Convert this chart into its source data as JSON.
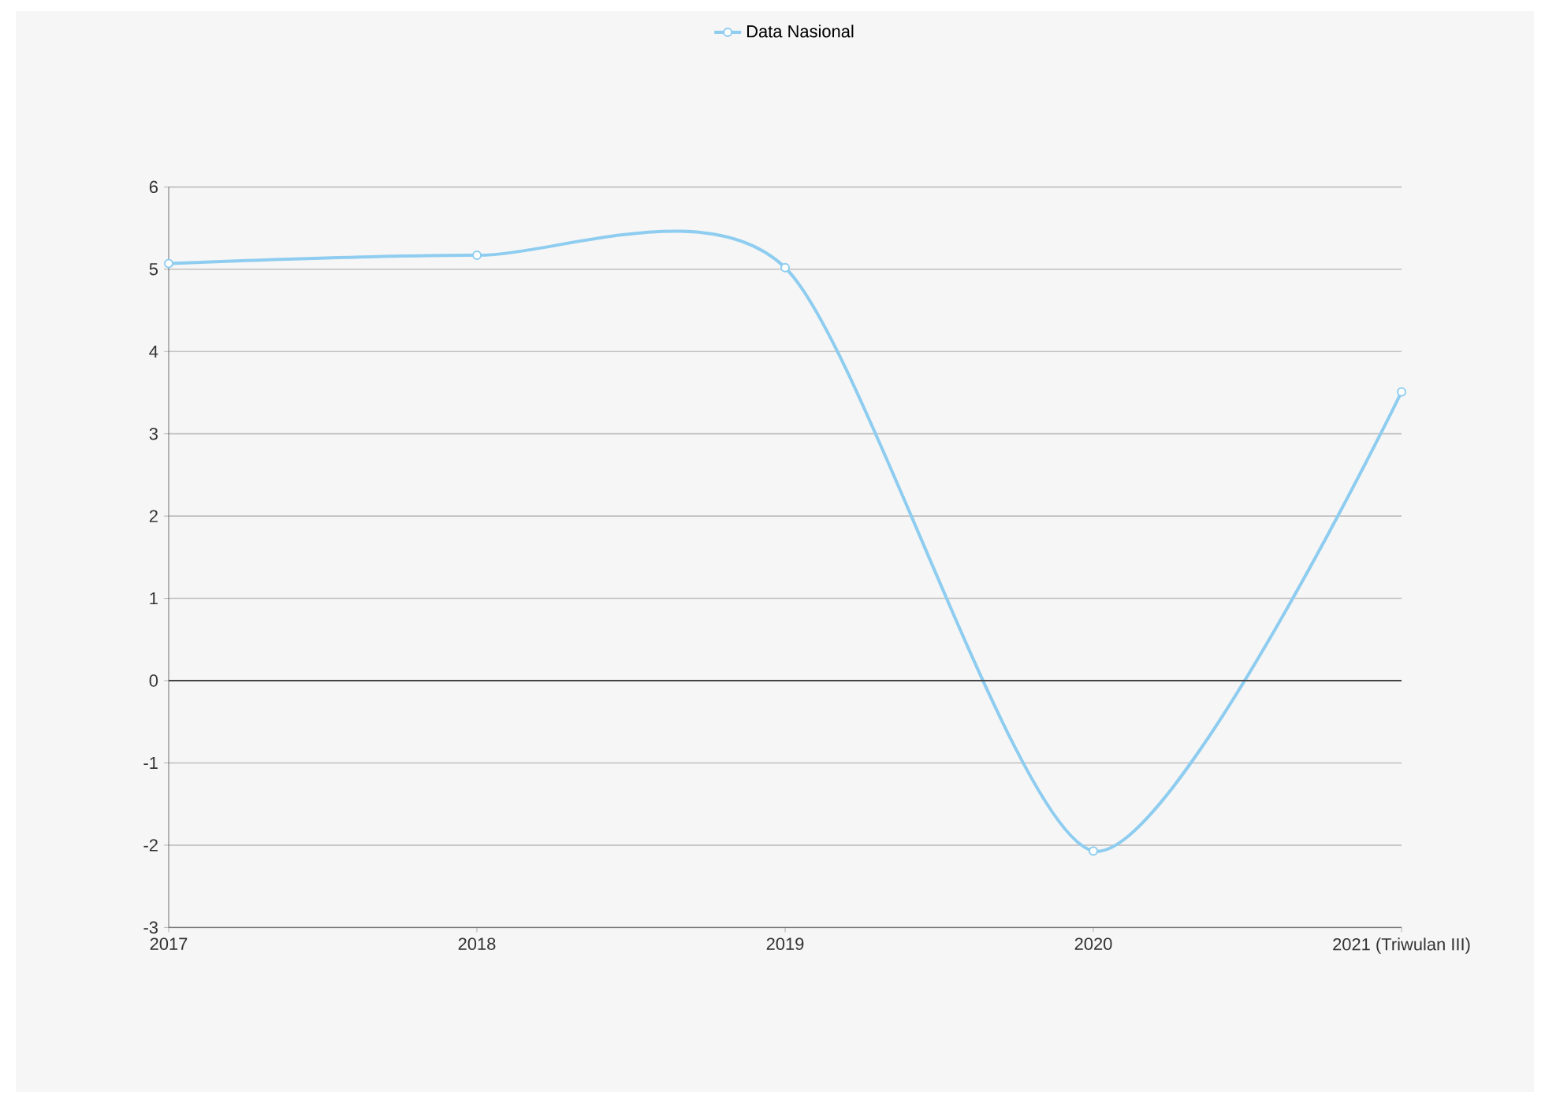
{
  "chart_data": {
    "type": "line",
    "categories": [
      "2017",
      "2018",
      "2019",
      "2020",
      "2021 (Triwulan III)"
    ],
    "series": [
      {
        "name": "Data Nasional",
        "color": "#8ecdf0",
        "values": [
          5.07,
          5.17,
          5.02,
          -2.07,
          3.51
        ]
      }
    ],
    "ylim": [
      -3,
      6
    ],
    "yticks": [
      -3,
      -2,
      -1,
      0,
      1,
      2,
      3,
      4,
      5,
      6
    ],
    "grid": "y",
    "legend": "top",
    "marker": "circle",
    "line_style": "solid",
    "ref_lines": [
      {
        "axis": "y",
        "value": 0,
        "color": "#444444"
      }
    ]
  }
}
